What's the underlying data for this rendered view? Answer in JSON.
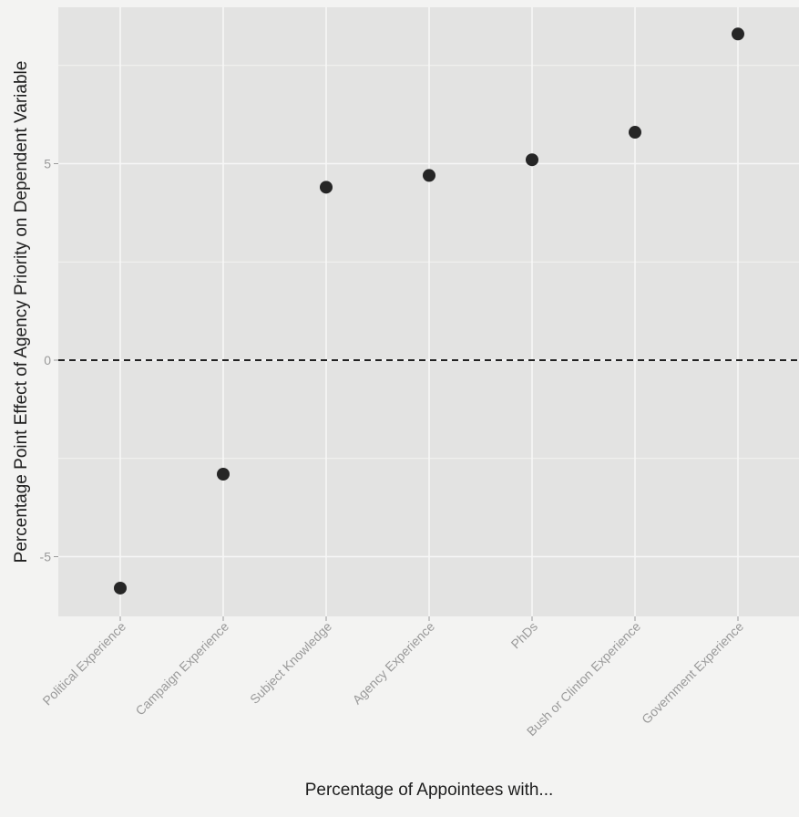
{
  "chart_data": {
    "type": "scatter",
    "title": "",
    "xlabel": "Percentage of Appointees with...",
    "ylabel": "Percentage Point Effect of Agency Priority on Dependent Variable",
    "categories": [
      "Political Experience",
      "Campaign Experience",
      "Subject Knowledge",
      "Agency Experience",
      "PhDs",
      "Bush or Clinton Experience",
      "Government Experience"
    ],
    "values": [
      -5.8,
      -2.9,
      4.4,
      4.7,
      5.1,
      5.8,
      8.3
    ],
    "yticks": [
      -5,
      0,
      5
    ],
    "ytick_labels": [
      "-5",
      "0",
      "5"
    ],
    "ylim": [
      -6.5,
      8.9
    ],
    "reference_line": {
      "y": 0,
      "style": "dashed"
    },
    "grid": true,
    "legend": "none",
    "colors": {
      "panel": "#e3e3e2",
      "page": "#f3f3f2",
      "grid": "#f7f7f7",
      "point": "#262626",
      "reference_line": "#222222",
      "tick_label": "#9a9a9a",
      "axis_title": "#1e1e1e"
    }
  }
}
